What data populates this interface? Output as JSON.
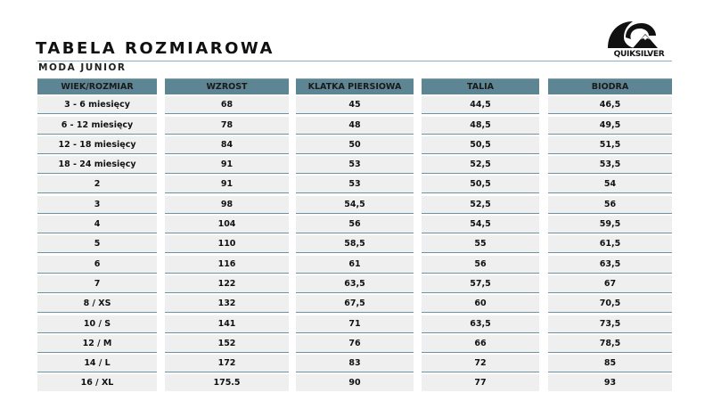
{
  "header": {
    "title": "TABELA ROZMIAROWA",
    "subtitle": "MODA JUNIOR",
    "logo_text": "QUIKSILVER"
  },
  "colors": {
    "header_bg": "#5e8593",
    "cell_bg": "#efefef",
    "divider": "#6d93a3"
  },
  "table": {
    "columns": [
      "WIEK/ROZMIAR",
      "WZROST",
      "KLATKA PIERSIOWA",
      "TALIA",
      "BIODRA"
    ],
    "rows": [
      [
        "3 - 6 miesięcy",
        "68",
        "45",
        "44,5",
        "46,5"
      ],
      [
        "6 - 12 miesięcy",
        "78",
        "48",
        "48,5",
        "49,5"
      ],
      [
        "12 - 18 miesięcy",
        "84",
        "50",
        "50,5",
        "51,5"
      ],
      [
        "18 - 24 miesięcy",
        "91",
        "53",
        "52,5",
        "53,5"
      ],
      [
        "2",
        "91",
        "53",
        "50,5",
        "54"
      ],
      [
        "3",
        "98",
        "54,5",
        "52,5",
        "56"
      ],
      [
        "4",
        "104",
        "56",
        "54,5",
        "59,5"
      ],
      [
        "5",
        "110",
        "58,5",
        "55",
        "61,5"
      ],
      [
        "6",
        "116",
        "61",
        "56",
        "63,5"
      ],
      [
        "7",
        "122",
        "63,5",
        "57,5",
        "67"
      ],
      [
        "8 / XS",
        "132",
        "67,5",
        "60",
        "70,5"
      ],
      [
        "10 / S",
        "141",
        "71",
        "63,5",
        "73,5"
      ],
      [
        "12 / M",
        "152",
        "76",
        "66",
        "78,5"
      ],
      [
        "14 / L",
        "172",
        "83",
        "72",
        "85"
      ],
      [
        "16 / XL",
        "175.5",
        "90",
        "77",
        "93"
      ]
    ]
  }
}
